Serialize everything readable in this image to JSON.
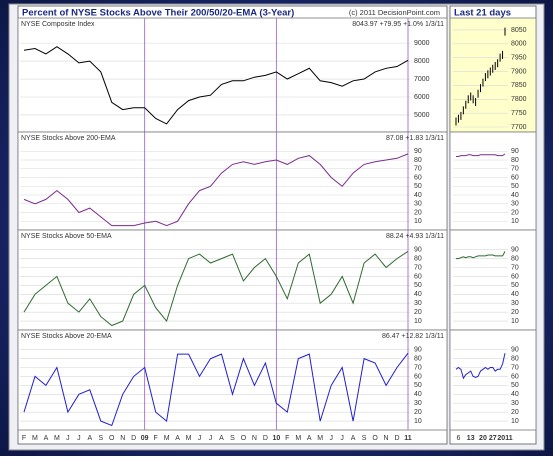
{
  "header": {
    "title": "Percent of NYSE Stocks Above Their 200/50/20-EMA (3-Year)",
    "copyright": "(c) 2011 DecisionPoint.com",
    "side_title": "Last 21 days"
  },
  "chart_data": [
    {
      "type": "line",
      "title": "NYSE Composite Index",
      "stats": "8043.97 +79.95 +1.0% 1/3/11",
      "color": "#000000",
      "values": [
        8600,
        8700,
        8400,
        8800,
        8400,
        7900,
        8000,
        7400,
        5700,
        5300,
        5400,
        5400,
        4800,
        4500,
        5300,
        5800,
        6000,
        6100,
        6700,
        6900,
        6900,
        7100,
        7200,
        7400,
        7000,
        7300,
        7600,
        6900,
        6800,
        6600,
        6900,
        7000,
        7400,
        7600,
        7700,
        8044
      ],
      "ylim": [
        4050,
        10400
      ],
      "yticks": [
        5000,
        6000,
        7000,
        8000,
        9000
      ]
    },
    {
      "type": "line",
      "title": "NYSE Stocks Above 200-EMA",
      "stats": "87.08 +1.83 1/3/11",
      "color": "#7b2d8e",
      "values": [
        35,
        30,
        35,
        45,
        35,
        20,
        25,
        15,
        5,
        5,
        5,
        8,
        10,
        5,
        10,
        30,
        45,
        50,
        65,
        75,
        78,
        75,
        78,
        80,
        75,
        82,
        85,
        75,
        60,
        50,
        65,
        75,
        78,
        80,
        82,
        87
      ],
      "ylim": [
        0,
        112
      ],
      "yticks": [
        10,
        20,
        30,
        40,
        50,
        60,
        70,
        80,
        90
      ]
    },
    {
      "type": "line",
      "title": "NYSE Stocks Above 50-EMA",
      "stats": "88.24 +4.93 1/3/11",
      "color": "#2e6b2e",
      "values": [
        20,
        40,
        50,
        60,
        30,
        20,
        35,
        15,
        5,
        10,
        40,
        50,
        25,
        10,
        50,
        80,
        85,
        75,
        80,
        85,
        55,
        70,
        80,
        60,
        35,
        75,
        85,
        30,
        40,
        60,
        30,
        75,
        85,
        70,
        80,
        88
      ],
      "ylim": [
        0,
        112
      ],
      "yticks": [
        10,
        20,
        30,
        40,
        50,
        60,
        70,
        80,
        90
      ]
    },
    {
      "type": "line",
      "title": "NYSE Stocks Above 20-EMA",
      "stats": "86.47 +12.82 1/3/11",
      "color": "#2020d0",
      "categories": [
        "F",
        "M",
        "A",
        "M",
        "J",
        "J",
        "A",
        "S",
        "O",
        "N",
        "D",
        "09",
        "F",
        "M",
        "A",
        "M",
        "J",
        "J",
        "A",
        "S",
        "O",
        "N",
        "D",
        "10",
        "F",
        "M",
        "A",
        "M",
        "J",
        "J",
        "A",
        "S",
        "O",
        "N",
        "D",
        "11"
      ],
      "values": [
        20,
        60,
        50,
        70,
        20,
        40,
        45,
        10,
        5,
        40,
        60,
        70,
        20,
        10,
        85,
        85,
        60,
        80,
        85,
        40,
        80,
        50,
        75,
        30,
        20,
        80,
        85,
        10,
        50,
        70,
        10,
        80,
        75,
        50,
        70,
        86
      ],
      "ylim": [
        0,
        112
      ],
      "yticks": [
        10,
        20,
        30,
        40,
        50,
        60,
        70,
        80,
        90
      ]
    },
    {
      "type": "tick",
      "color": "#000000",
      "values": [
        7720,
        7730,
        7740,
        7760,
        7780,
        7800,
        7810,
        7800,
        7790,
        7820,
        7840,
        7860,
        7880,
        7890,
        7900,
        7910,
        7920,
        7930,
        7950,
        7960,
        8044
      ],
      "ylim": [
        7682,
        8093
      ],
      "yticks": [
        7700,
        7750,
        7800,
        7850,
        7900,
        7950,
        8000,
        8050
      ]
    },
    {
      "type": "line",
      "color": "#7b2d8e",
      "values": [
        84,
        84,
        85,
        85,
        85,
        86,
        86,
        85,
        85,
        85,
        86,
        86,
        86,
        86,
        86,
        86,
        86,
        85,
        85,
        85,
        87
      ],
      "ylim": [
        0,
        112
      ],
      "yticks": [
        10,
        20,
        30,
        40,
        50,
        60,
        70,
        80,
        90
      ]
    },
    {
      "type": "line",
      "color": "#2e6b2e",
      "values": [
        80,
        80,
        81,
        82,
        81,
        82,
        82,
        81,
        82,
        83,
        83,
        83,
        83,
        84,
        84,
        84,
        83,
        83,
        83,
        83,
        88
      ],
      "ylim": [
        0,
        112
      ],
      "yticks": [
        10,
        20,
        30,
        40,
        50,
        60,
        70,
        80,
        90
      ]
    },
    {
      "type": "line",
      "color": "#2020d0",
      "categories": [
        null,
        "6",
        null,
        null,
        null,
        null,
        "13",
        null,
        null,
        null,
        null,
        "20",
        null,
        null,
        null,
        "27",
        null,
        null,
        null,
        null,
        "2011"
      ],
      "values": [
        68,
        70,
        68,
        58,
        62,
        64,
        66,
        60,
        59,
        60,
        66,
        68,
        70,
        68,
        70,
        70,
        66,
        68,
        68,
        74,
        86
      ],
      "ylim": [
        0,
        112
      ],
      "yticks": [
        10,
        20,
        30,
        40,
        50,
        60,
        70,
        80,
        90
      ]
    }
  ]
}
